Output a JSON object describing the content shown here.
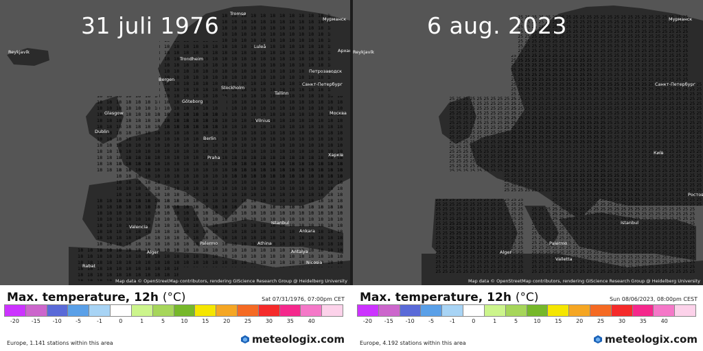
{
  "legend": {
    "title": "Max. temperature, 12h",
    "unit": "(°C)",
    "colors": [
      "#cc33ff",
      "#cc66cc",
      "#5a6ad8",
      "#5aa0e8",
      "#a8d4f5",
      "#ffffff",
      "#ccf58c",
      "#a6d65a",
      "#76b82a",
      "#f5e600",
      "#f5a623",
      "#f56a23",
      "#f52a2a",
      "#f5288c",
      "#f578c8",
      "#fcd2ea"
    ],
    "ticks": [
      "-20",
      "-15",
      "-10",
      "-5",
      "-1",
      "0",
      "1",
      "5",
      "10",
      "15",
      "20",
      "25",
      "30",
      "35",
      "40"
    ]
  },
  "attribution": "Map data © OpenStreetMap contributors, rendering GIScience Research Group @ Heidelberg University",
  "brand": "meteologix.com",
  "panels": [
    {
      "id": "left",
      "date_title": "31 juli 1976",
      "timestamp": "Sat 07/31/1976, 07:00pm CET",
      "stations": "Europe, 1.141 stations within this area",
      "cities": [
        "Reykjavík",
        "Tromsø",
        "Luleå",
        "Trondheim",
        "Bergen",
        "Stockholm",
        "Göteborg",
        "Tallinn",
        "Glasgow",
        "Dublin",
        "Vilnius",
        "Berlin",
        "Praha",
        "Istanbul",
        "Ankara",
        "Nicosia",
        "Valencia",
        "Alger",
        "Rabat",
        "Palermo",
        "Athina",
        "Antalya",
        "Мурманск",
        "Архангельск",
        "Петрозаводск",
        "Санкт-Петербург",
        "Москва",
        "Харків"
      ]
    },
    {
      "id": "right",
      "date_title": "6 aug. 2023",
      "timestamp": "Sun 08/06/2023, 08:00pm CEST",
      "stations": "Europe, 4.192 stations within this area",
      "cities": [
        "Reykjavík",
        "Мурманск",
        "Санкт-Петербург",
        "Istanbul",
        "Alger",
        "Palermo",
        "Valletta",
        "Київ",
        "Ростов"
      ]
    }
  ]
}
